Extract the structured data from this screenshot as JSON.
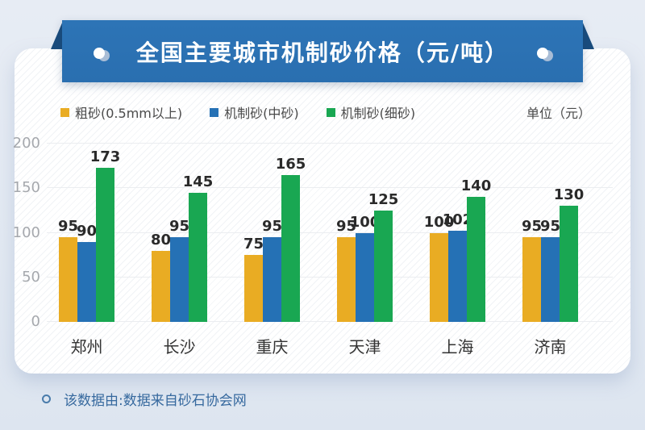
{
  "banner": {
    "title": "全国主要城市机制砂价格（元/吨）",
    "background_color": "#2a6fb0",
    "fold_color": "#1a4c7d"
  },
  "legend": {
    "items": [
      {
        "label": "粗砂(0.5mm以上)",
        "color": "#e9ac23"
      },
      {
        "label": "机制砂(中砂)",
        "color": "#2571b5"
      },
      {
        "label": "机制砂(细砂)",
        "color": "#19a752"
      }
    ],
    "unit_label": "单位（元）"
  },
  "chart_data": {
    "type": "bar",
    "title": "全国主要城市机制砂价格（元/吨）",
    "categories": [
      "郑州",
      "长沙",
      "重庆",
      "天津",
      "上海",
      "济南"
    ],
    "series": [
      {
        "name": "粗砂(0.5mm以上)",
        "color": "#e9ac23",
        "values": [
          95,
          80,
          75,
          95,
          100,
          95
        ]
      },
      {
        "name": "机制砂(中砂)",
        "color": "#2571b5",
        "values": [
          90,
          95,
          95,
          100,
          102,
          95
        ]
      },
      {
        "name": "机制砂(细砂)",
        "color": "#19a752",
        "values": [
          173,
          145,
          165,
          125,
          140,
          130
        ]
      }
    ],
    "ylim": [
      0,
      200
    ],
    "yticks": [
      0,
      50,
      100,
      150,
      200
    ],
    "grid": true,
    "legend_position": "top",
    "unit": "单位（元）",
    "xlabel": "",
    "ylabel": ""
  },
  "footer": {
    "note": "该数据由:数据来自砂石协会网"
  }
}
